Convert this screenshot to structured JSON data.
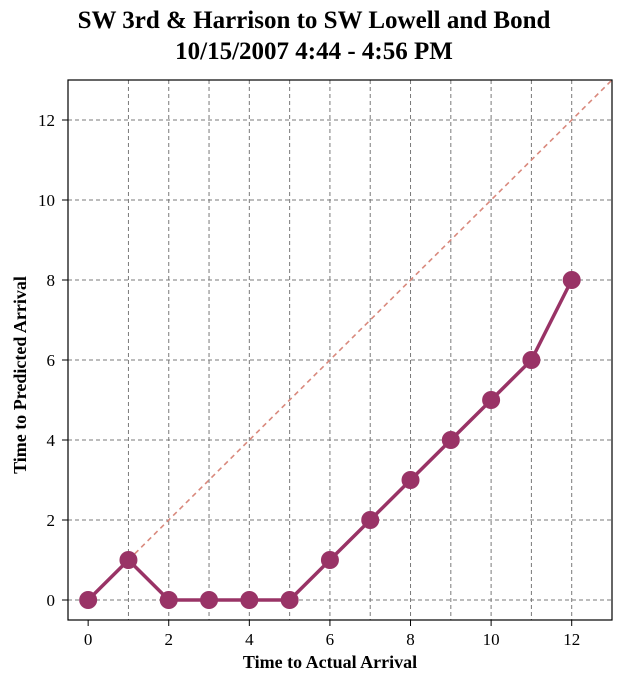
{
  "chart_data": {
    "type": "line",
    "title": "SW 3rd & Harrison to SW Lowell and Bond",
    "subtitle": "10/15/2007 4:44 - 4:56 PM",
    "xlabel": "Time to Actual  Arrival",
    "ylabel": "Time to Predicted  Arrival",
    "xlim": [
      -0.5,
      13
    ],
    "ylim": [
      -0.5,
      13
    ],
    "xticks": [
      0,
      2,
      4,
      6,
      8,
      10,
      12
    ],
    "yticks": [
      0,
      2,
      4,
      6,
      8,
      10,
      12
    ],
    "grid": true,
    "legend": "none",
    "series": [
      {
        "x": [
          0,
          1,
          2,
          3,
          4,
          5,
          6,
          7,
          8,
          9,
          10,
          11,
          12
        ],
        "y": [
          0,
          1,
          0,
          0,
          0,
          0,
          1,
          2,
          3,
          4,
          5,
          6,
          8
        ],
        "color": "#993366",
        "style": "solid-with-markers"
      }
    ],
    "reference_line": {
      "x": [
        1,
        13
      ],
      "y": [
        1,
        13
      ],
      "color": "#d9897d",
      "style": "dashed"
    }
  }
}
